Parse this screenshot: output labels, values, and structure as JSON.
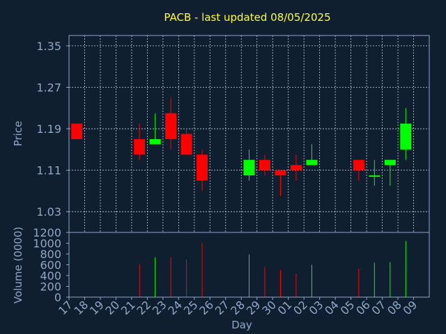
{
  "chart_data": {
    "type": "candlestick",
    "title": "PACB - last updated 08/05/2025",
    "xlabel": "Day",
    "ylabel_price": "Price",
    "ylabel_volume": "Volume (0000)",
    "price_ticks": [
      "1.35",
      "1.27",
      "1.19",
      "1.11",
      "1.03"
    ],
    "price_tick_values": [
      1.35,
      1.27,
      1.19,
      1.11,
      1.03
    ],
    "price_range": [
      0.99,
      1.37
    ],
    "volume_ticks": [
      "1200",
      "1000",
      "800",
      "600",
      "400",
      "200",
      "0"
    ],
    "volume_tick_values": [
      1200,
      1000,
      800,
      600,
      400,
      200,
      0
    ],
    "volume_range": [
      0,
      1200
    ],
    "days": [
      "17",
      "18",
      "19",
      "20",
      "21",
      "22",
      "23",
      "24",
      "25",
      "26",
      "27",
      "28",
      "29",
      "30",
      "01",
      "02",
      "03",
      "04",
      "05",
      "06",
      "07",
      "08",
      "09"
    ],
    "candles": [
      {
        "day": "17",
        "open": 1.2,
        "close": 1.17,
        "high": 1.2,
        "low": 1.17,
        "volume": 0
      },
      {
        "day": "21",
        "open": 1.17,
        "close": 1.14,
        "high": 1.2,
        "low": 1.13,
        "volume": 610
      },
      {
        "day": "22",
        "open": 1.16,
        "close": 1.17,
        "high": 1.22,
        "low": 1.16,
        "volume": 740
      },
      {
        "day": "23",
        "open": 1.22,
        "close": 1.17,
        "high": 1.25,
        "low": 1.15,
        "volume": 740
      },
      {
        "day": "24",
        "open": 1.18,
        "close": 1.14,
        "high": 1.19,
        "low": 1.14,
        "volume": 700
      },
      {
        "day": "25",
        "open": 1.14,
        "close": 1.09,
        "high": 1.15,
        "low": 1.07,
        "volume": 1000
      },
      {
        "day": "28",
        "open": 1.1,
        "close": 1.13,
        "high": 1.15,
        "low": 1.09,
        "volume": 790
      },
      {
        "day": "29",
        "open": 1.13,
        "close": 1.11,
        "high": 1.14,
        "low": 1.1,
        "volume": 560
      },
      {
        "day": "30",
        "open": 1.11,
        "close": 1.1,
        "high": 1.11,
        "low": 1.06,
        "volume": 500
      },
      {
        "day": "01",
        "open": 1.12,
        "close": 1.11,
        "high": 1.14,
        "low": 1.09,
        "volume": 440
      },
      {
        "day": "02",
        "open": 1.12,
        "close": 1.13,
        "high": 1.16,
        "low": 1.12,
        "volume": 600
      },
      {
        "day": "05",
        "open": 1.13,
        "close": 1.11,
        "high": 1.13,
        "low": 1.09,
        "volume": 530
      },
      {
        "day": "06",
        "open": 1.1,
        "close": 1.1,
        "high": 1.13,
        "low": 1.08,
        "volume": 640
      },
      {
        "day": "07",
        "open": 1.12,
        "close": 1.13,
        "high": 1.13,
        "low": 1.08,
        "volume": 650
      },
      {
        "day": "08",
        "open": 1.15,
        "close": 1.2,
        "high": 1.23,
        "low": 1.13,
        "volume": 1040
      }
    ],
    "colors": {
      "up": "#00ff00",
      "down": "#ff0000",
      "background": "#0f1f30",
      "text": "#8fa8c8",
      "title": "#ffff33",
      "grid": "#c8d0e0"
    },
    "grid": true
  }
}
